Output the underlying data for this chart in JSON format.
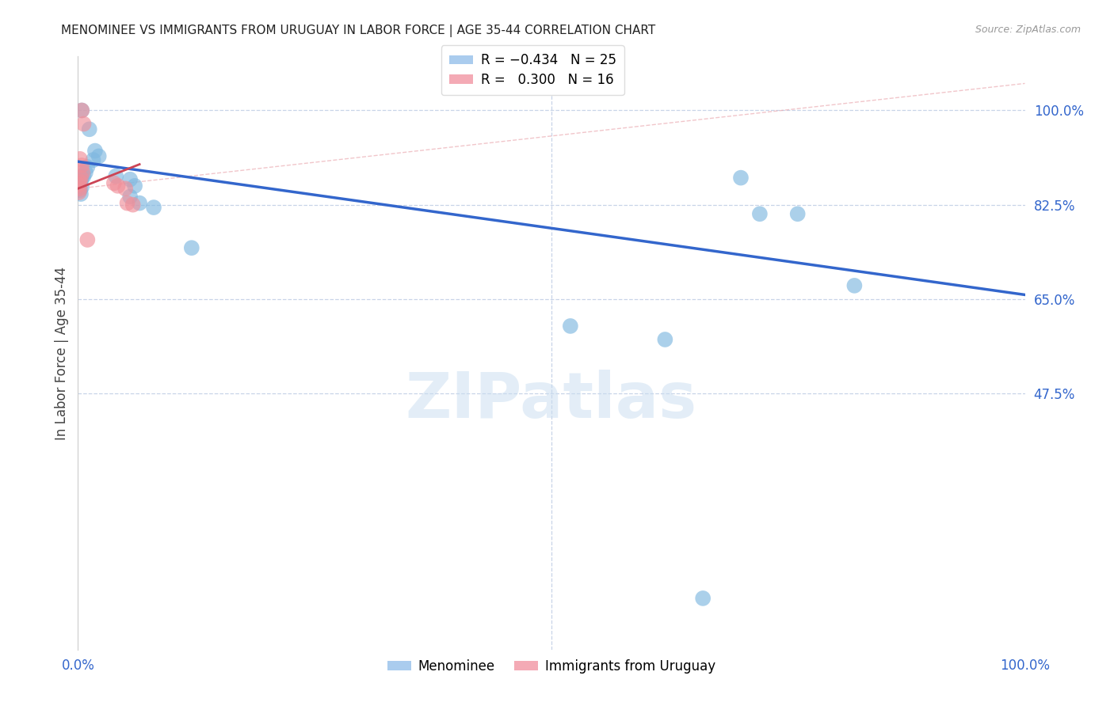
{
  "title": "MENOMINEE VS IMMIGRANTS FROM URUGUAY IN LABOR FORCE | AGE 35-44 CORRELATION CHART",
  "source": "Source: ZipAtlas.com",
  "ylabel": "In Labor Force | Age 35-44",
  "xlim": [
    0.0,
    1.0
  ],
  "ylim": [
    0.0,
    1.1
  ],
  "xtick_positions": [
    0.0,
    0.5,
    1.0
  ],
  "xtick_labels": [
    "0.0%",
    "",
    "100.0%"
  ],
  "ytick_labels": [
    "100.0%",
    "82.5%",
    "65.0%",
    "47.5%"
  ],
  "ytick_positions": [
    1.0,
    0.825,
    0.65,
    0.475
  ],
  "watermark": "ZIPatlas",
  "menominee_points": [
    [
      0.004,
      1.0
    ],
    [
      0.012,
      0.965
    ],
    [
      0.018,
      0.925
    ],
    [
      0.022,
      0.915
    ],
    [
      0.016,
      0.908
    ],
    [
      0.01,
      0.895
    ],
    [
      0.008,
      0.885
    ],
    [
      0.006,
      0.878
    ],
    [
      0.004,
      0.875
    ],
    [
      0.003,
      0.87
    ],
    [
      0.002,
      0.866
    ],
    [
      0.004,
      0.858
    ],
    [
      0.002,
      0.852
    ],
    [
      0.003,
      0.845
    ],
    [
      0.04,
      0.878
    ],
    [
      0.055,
      0.872
    ],
    [
      0.06,
      0.86
    ],
    [
      0.055,
      0.84
    ],
    [
      0.065,
      0.828
    ],
    [
      0.08,
      0.82
    ],
    [
      0.12,
      0.745
    ],
    [
      0.7,
      0.875
    ],
    [
      0.72,
      0.808
    ],
    [
      0.76,
      0.808
    ],
    [
      0.82,
      0.675
    ],
    [
      0.52,
      0.6
    ],
    [
      0.62,
      0.575
    ],
    [
      0.66,
      0.095
    ]
  ],
  "uruguay_points": [
    [
      0.004,
      1.0
    ],
    [
      0.006,
      0.975
    ],
    [
      0.002,
      0.91
    ],
    [
      0.004,
      0.898
    ],
    [
      0.005,
      0.885
    ],
    [
      0.003,
      0.875
    ],
    [
      0.002,
      0.868
    ],
    [
      0.001,
      0.862
    ],
    [
      0.002,
      0.855
    ],
    [
      0.001,
      0.848
    ],
    [
      0.038,
      0.865
    ],
    [
      0.042,
      0.86
    ],
    [
      0.05,
      0.855
    ],
    [
      0.052,
      0.828
    ],
    [
      0.058,
      0.825
    ],
    [
      0.01,
      0.76
    ]
  ],
  "menominee_line_x": [
    0.0,
    1.0
  ],
  "menominee_line_y": [
    0.905,
    0.658
  ],
  "uruguay_line_x": [
    0.0,
    0.065
  ],
  "uruguay_line_y": [
    0.855,
    0.9
  ],
  "diag_line_x": [
    0.0,
    1.0
  ],
  "diag_line_y": [
    0.855,
    1.05
  ],
  "menominee_color": "#7fb8e0",
  "uruguay_color": "#f0909a",
  "line_blue": "#3366cc",
  "line_pink": "#cc4455",
  "grid_color": "#c8d4e8",
  "background_color": "#ffffff",
  "tick_color": "#3366cc",
  "axis_color": "#cccccc"
}
